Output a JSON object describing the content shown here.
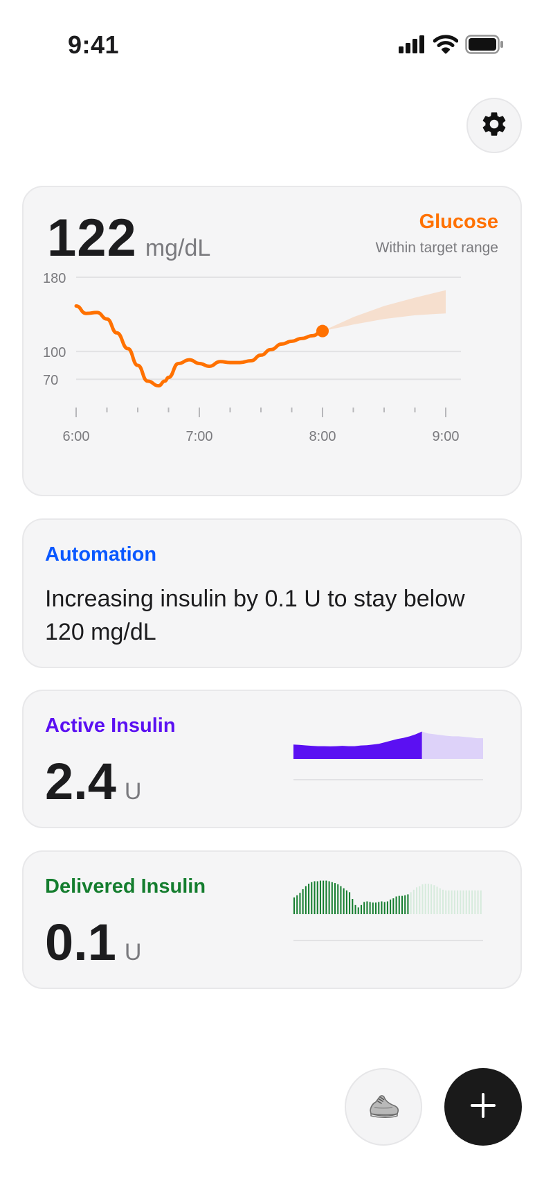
{
  "status_bar": {
    "time": "9:41",
    "icons": [
      "cellular-signal-icon",
      "wifi-icon",
      "battery-icon"
    ]
  },
  "settings": {
    "icon": "gear-icon"
  },
  "glucose": {
    "value": "122",
    "unit": "mg/dL",
    "title": "Glucose",
    "status": "Within target range",
    "accent_color": "#ff7100"
  },
  "chart_data": {
    "type": "line",
    "title": "",
    "xlabel": "",
    "ylabel": "",
    "x_ticks": [
      "6:00",
      "7:00",
      "8:00",
      "9:00"
    ],
    "y_ticks": [
      "180",
      "100",
      "70"
    ],
    "x_range_hours": [
      6,
      9
    ],
    "y_gridlines": [
      180,
      100,
      70
    ],
    "series": [
      {
        "kind": "measured",
        "x": [
          6.0,
          6.08,
          6.17,
          6.25,
          6.33,
          6.42,
          6.5,
          6.58,
          6.67,
          6.72,
          6.75,
          6.83,
          6.92,
          7.0,
          7.08,
          7.17,
          7.25,
          7.33,
          7.42,
          7.5,
          7.58,
          7.67,
          7.75,
          7.83,
          7.92,
          8.0
        ],
        "y": [
          149,
          141,
          142,
          135,
          120,
          103,
          85,
          68,
          63,
          68,
          72,
          87,
          91,
          87,
          84,
          89,
          88,
          88,
          90,
          96,
          102,
          108,
          111,
          114,
          117,
          122
        ]
      },
      {
        "kind": "forecast_band",
        "x": [
          8.0,
          8.25,
          8.5,
          8.75,
          9.0
        ],
        "y_low": [
          122,
          129,
          135,
          139,
          141
        ],
        "y_high": [
          122,
          137,
          149,
          158,
          166
        ]
      }
    ],
    "grid": true,
    "legend": "none"
  },
  "automation": {
    "title": "Automation",
    "message": "Increasing insulin by 0.1 U to stay below 120 mg/dL",
    "accent_color": "#0a58ff"
  },
  "active_insulin": {
    "title": "Active Insulin",
    "value": "2.4",
    "unit": "U",
    "accent_color": "#5b10f2",
    "forecast_color": "#ddd2f9",
    "history": [
      0.9,
      0.88,
      0.85,
      0.82,
      0.8,
      0.8,
      0.79,
      0.8,
      0.82,
      0.8,
      0.8,
      0.84,
      0.86,
      0.9,
      0.95,
      1.05,
      1.15,
      1.25,
      1.32,
      1.42,
      1.55,
      1.72
    ],
    "forecast": [
      1.72,
      1.6,
      1.55,
      1.5,
      1.45,
      1.42,
      1.42,
      1.38,
      1.35,
      1.3,
      1.3
    ]
  },
  "delivered_insulin": {
    "title": "Delivered Insulin",
    "value": "0.1",
    "unit": "U",
    "accent_color": "#147d2e",
    "forecast_color": "#d6ebdc",
    "history": [
      0.55,
      0.62,
      0.7,
      0.82,
      0.92,
      1.0,
      1.05,
      1.08,
      1.08,
      1.1,
      1.1,
      1.1,
      1.08,
      1.05,
      1.02,
      0.98,
      0.92,
      0.85,
      0.78,
      0.72,
      0.5,
      0.3,
      0.22,
      0.3,
      0.4,
      0.42,
      0.4,
      0.38,
      0.38,
      0.4,
      0.42,
      0.4,
      0.42,
      0.48,
      0.52,
      0.58,
      0.6,
      0.6,
      0.62,
      0.65
    ],
    "forecast": [
      0.72,
      0.8,
      0.88,
      0.92,
      0.98,
      1.0,
      1.0,
      0.98,
      0.95,
      0.9,
      0.85,
      0.8,
      0.78,
      0.78,
      0.78,
      0.78,
      0.78,
      0.78,
      0.78,
      0.78,
      0.78,
      0.78,
      0.78,
      0.78,
      0.78
    ]
  },
  "actions": {
    "activity_icon": "sneaker-icon",
    "add_icon": "plus-icon"
  }
}
